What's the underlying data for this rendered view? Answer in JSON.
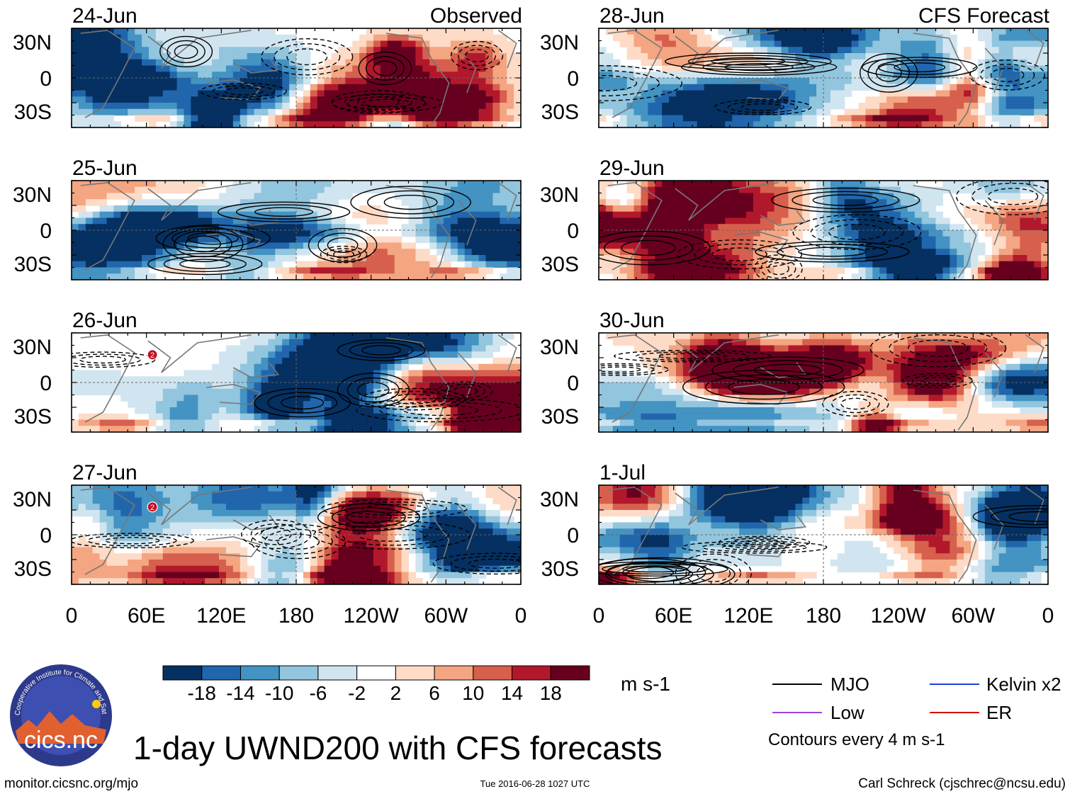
{
  "chart_data": {
    "type": "heatmap",
    "title": "1-day UWND200 with CFS forecasts",
    "variable": "UWND200",
    "units": "m s-1",
    "observed_label": "Observed",
    "forecast_label": "CFS Forecast",
    "x_ticks": [
      "0",
      "60E",
      "120E",
      "180",
      "120W",
      "60W",
      "0"
    ],
    "y_ticks": [
      "30N",
      "0",
      "30S"
    ],
    "lat_range": [
      -40,
      40
    ],
    "lon_range": [
      0,
      360
    ],
    "colorbar_levels": [
      "-18",
      "-14",
      "-10",
      "-6",
      "-2",
      "2",
      "6",
      "10",
      "14",
      "18"
    ],
    "colorbar_colors": [
      "#053061",
      "#2166ac",
      "#4393c3",
      "#92c5de",
      "#d1e5f0",
      "#ffffff",
      "#fddbc7",
      "#f4a582",
      "#d6604d",
      "#b2182b",
      "#67001f"
    ],
    "contour_note": "Contours every 4 m s-1",
    "legend": [
      {
        "name": "MJO",
        "color": "#000000"
      },
      {
        "name": "Kelvin x2",
        "color": "#1f3fe0"
      },
      {
        "name": "Low",
        "color": "#a040e0"
      },
      {
        "name": "ER",
        "color": "#d01010"
      }
    ],
    "panels": [
      {
        "date": "24-Jun",
        "column": "observed",
        "side_label": "Observed",
        "seed": 11
      },
      {
        "date": "25-Jun",
        "column": "observed",
        "side_label": "",
        "seed": 23
      },
      {
        "date": "26-Jun",
        "column": "observed",
        "side_label": "",
        "seed": 37,
        "storm_marker": "2"
      },
      {
        "date": "27-Jun",
        "column": "observed",
        "side_label": "",
        "seed": 41,
        "storm_marker": "2"
      },
      {
        "date": "28-Jun",
        "column": "forecast",
        "side_label": "CFS Forecast",
        "seed": 53
      },
      {
        "date": "29-Jun",
        "column": "forecast",
        "side_label": "",
        "seed": 67
      },
      {
        "date": "30-Jun",
        "column": "forecast",
        "side_label": "",
        "seed": 71
      },
      {
        "date": "1-Jul",
        "column": "forecast",
        "side_label": "",
        "seed": 83
      }
    ]
  },
  "footer": {
    "website": "monitor.cicsnc.org/mjo",
    "timestamp": "Tue 2016-06-28 1027 UTC",
    "author": "Carl Schreck (cjschrec@ncsu.edu)"
  },
  "logo": {
    "text": "cics.nc",
    "ring_text": "Cooperative Institute for Climate and Satellites"
  }
}
